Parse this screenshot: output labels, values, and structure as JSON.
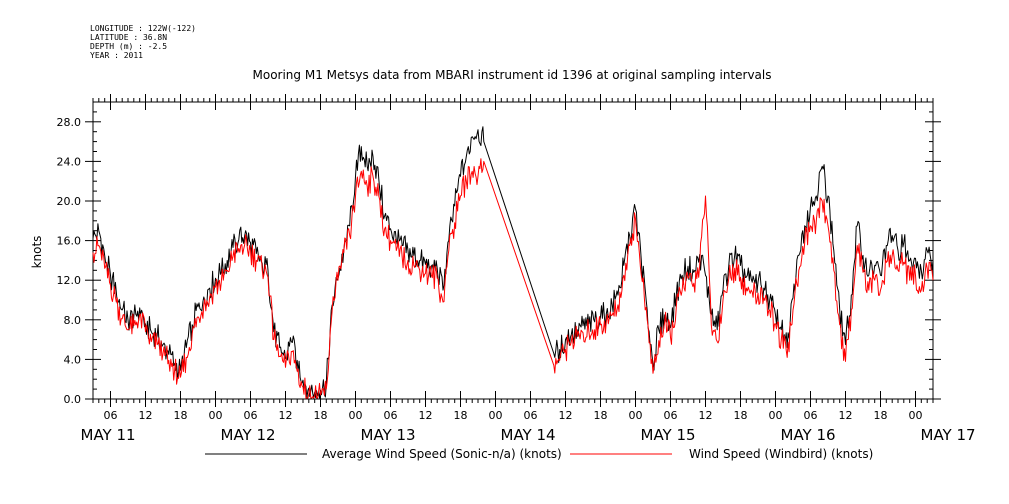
{
  "header": {
    "longitude": "LONGITUDE : 122W(-122)",
    "latitude": "LATITUDE : 36.8N",
    "depth": "DEPTH (m) : -2.5",
    "year": "YEAR : 2011"
  },
  "chart_data": {
    "type": "line",
    "title": "Mooring M1 Metsys data from MBARI instrument id 1396 at original sampling intervals",
    "xlabel": "",
    "ylabel": "knots",
    "x_unit": "hours since MAY 11 00:00",
    "xlim": [
      3,
      147
    ],
    "ylim": [
      0,
      30
    ],
    "y_ticks": [
      "0.0",
      "4.0",
      "8.0",
      "12.0",
      "16.0",
      "20.0",
      "24.0",
      "28.0"
    ],
    "x_hour_ticks": [
      {
        "x": 6,
        "label": "06"
      },
      {
        "x": 12,
        "label": "12"
      },
      {
        "x": 18,
        "label": "18"
      },
      {
        "x": 24,
        "label": "00"
      },
      {
        "x": 30,
        "label": "06"
      },
      {
        "x": 36,
        "label": "12"
      },
      {
        "x": 42,
        "label": "18"
      },
      {
        "x": 48,
        "label": "00"
      },
      {
        "x": 54,
        "label": "06"
      },
      {
        "x": 60,
        "label": "12"
      },
      {
        "x": 66,
        "label": "18"
      },
      {
        "x": 72,
        "label": "00"
      },
      {
        "x": 78,
        "label": "06"
      },
      {
        "x": 84,
        "label": "12"
      },
      {
        "x": 90,
        "label": "18"
      },
      {
        "x": 96,
        "label": "00"
      },
      {
        "x": 102,
        "label": "06"
      },
      {
        "x": 108,
        "label": "12"
      },
      {
        "x": 114,
        "label": "18"
      },
      {
        "x": 120,
        "label": "00"
      },
      {
        "x": 126,
        "label": "06"
      },
      {
        "x": 132,
        "label": "12"
      },
      {
        "x": 138,
        "label": "18"
      },
      {
        "x": 144,
        "label": "00"
      }
    ],
    "day_labels": [
      {
        "x": 6,
        "label": "MAY 11"
      },
      {
        "x": 30,
        "label": "MAY 12"
      },
      {
        "x": 54,
        "label": "MAY 13"
      },
      {
        "x": 78,
        "label": "MAY 14"
      },
      {
        "x": 102,
        "label": "MAY 15"
      },
      {
        "x": 126,
        "label": "MAY 16"
      },
      {
        "x": 150,
        "label": "MAY 17"
      }
    ],
    "grid": false,
    "legend": "bottom",
    "series": [
      {
        "name": "Average Wind Speed (Sonic-n/a) (knots)",
        "color": "#000000",
        "points": [
          [
            3,
            16.2
          ],
          [
            4,
            17.0
          ],
          [
            5,
            14.5
          ],
          [
            6,
            12.5
          ],
          [
            7,
            10.8
          ],
          [
            8,
            9.0
          ],
          [
            9,
            8.0
          ],
          [
            10,
            8.3
          ],
          [
            11,
            9.2
          ],
          [
            12,
            7.6
          ],
          [
            13,
            6.8
          ],
          [
            14,
            6.4
          ],
          [
            15,
            5.5
          ],
          [
            16,
            4.5
          ],
          [
            17,
            3.6
          ],
          [
            18,
            2.9
          ],
          [
            19,
            5.2
          ],
          [
            20,
            7.5
          ],
          [
            21,
            9.3
          ],
          [
            22,
            10.3
          ],
          [
            23,
            11.2
          ],
          [
            24,
            12.2
          ],
          [
            25,
            12.8
          ],
          [
            26,
            14.0
          ],
          [
            27,
            15.3
          ],
          [
            28,
            16.1
          ],
          [
            29,
            16.5
          ],
          [
            30,
            15.8
          ],
          [
            31,
            14.7
          ],
          [
            32,
            13.7
          ],
          [
            33,
            13.0
          ],
          [
            34,
            6.8
          ],
          [
            35,
            5.2
          ],
          [
            36,
            4.1
          ],
          [
            37,
            5.8
          ],
          [
            38,
            3.9
          ],
          [
            39,
            1.9
          ],
          [
            40,
            1.1
          ],
          [
            41,
            0.7
          ],
          [
            42,
            0.9
          ],
          [
            43,
            1.5
          ],
          [
            44,
            9.5
          ],
          [
            45,
            12.2
          ],
          [
            46,
            15.0
          ],
          [
            47,
            17.5
          ],
          [
            48,
            22.5
          ],
          [
            49,
            25.5
          ],
          [
            50,
            23.5
          ],
          [
            51,
            24.5
          ],
          [
            52,
            22.2
          ],
          [
            53,
            18.5
          ],
          [
            54,
            17.2
          ],
          [
            55,
            16.0
          ],
          [
            56,
            15.5
          ],
          [
            57,
            15.0
          ],
          [
            58,
            14.5
          ],
          [
            59,
            14.0
          ],
          [
            60,
            13.6
          ],
          [
            61,
            13.4
          ],
          [
            62,
            13.2
          ],
          [
            63,
            11.0
          ],
          [
            64,
            16.0
          ],
          [
            65,
            19.5
          ],
          [
            66,
            22.5
          ],
          [
            67,
            24.5
          ],
          [
            68,
            26.5
          ],
          [
            69,
            27.2
          ],
          [
            70,
            26.0
          ],
          [
            82,
            4.6
          ],
          [
            83,
            5.0
          ],
          [
            84,
            6.0
          ],
          [
            85,
            6.5
          ],
          [
            86,
            7.0
          ],
          [
            87,
            7.4
          ],
          [
            88,
            7.6
          ],
          [
            89,
            7.8
          ],
          [
            90,
            8.3
          ],
          [
            91,
            8.6
          ],
          [
            92,
            9.5
          ],
          [
            93,
            10.5
          ],
          [
            94,
            13.5
          ],
          [
            95,
            16.5
          ],
          [
            96,
            19.2
          ],
          [
            97,
            14.0
          ],
          [
            98,
            9.0
          ],
          [
            99,
            3.6
          ],
          [
            100,
            7.0
          ],
          [
            101,
            8.5
          ],
          [
            102,
            7.2
          ],
          [
            103,
            10.5
          ],
          [
            104,
            12.5
          ],
          [
            105,
            13.4
          ],
          [
            106,
            12.8
          ],
          [
            107,
            14.6
          ],
          [
            108,
            12.5
          ],
          [
            109,
            8.5
          ],
          [
            110,
            7.0
          ],
          [
            111,
            11.0
          ],
          [
            112,
            13.5
          ],
          [
            113,
            14.5
          ],
          [
            114,
            13.5
          ],
          [
            115,
            12.3
          ],
          [
            116,
            11.8
          ],
          [
            117,
            11.8
          ],
          [
            118,
            11.2
          ],
          [
            119,
            10.0
          ],
          [
            120,
            8.5
          ],
          [
            121,
            7.0
          ],
          [
            122,
            5.2
          ],
          [
            123,
            10.2
          ],
          [
            124,
            14.5
          ],
          [
            125,
            17.5
          ],
          [
            126,
            19.5
          ],
          [
            127,
            20.5
          ],
          [
            128,
            23.5
          ],
          [
            129,
            20.5
          ],
          [
            130,
            15.0
          ],
          [
            131,
            9.0
          ],
          [
            132,
            5.5
          ],
          [
            133,
            10.5
          ],
          [
            134,
            17.5
          ],
          [
            135,
            14.5
          ],
          [
            136,
            12.5
          ],
          [
            137,
            13.5
          ],
          [
            138,
            12.5
          ],
          [
            139,
            15.5
          ],
          [
            140,
            16.5
          ],
          [
            141,
            15.0
          ],
          [
            142,
            15.8
          ],
          [
            143,
            14.0
          ],
          [
            144,
            14.2
          ],
          [
            145,
            13.0
          ],
          [
            146,
            15.0
          ],
          [
            147,
            14.0
          ]
        ]
      },
      {
        "name": "Wind Speed (Windbird) (knots)",
        "color": "#ff0000",
        "points": [
          [
            3,
            14.8
          ],
          [
            4,
            15.5
          ],
          [
            5,
            13.2
          ],
          [
            6,
            11.5
          ],
          [
            7,
            9.8
          ],
          [
            8,
            8.1
          ],
          [
            9,
            7.0
          ],
          [
            10,
            7.4
          ],
          [
            11,
            8.5
          ],
          [
            12,
            6.8
          ],
          [
            13,
            5.8
          ],
          [
            14,
            5.5
          ],
          [
            15,
            4.6
          ],
          [
            16,
            3.9
          ],
          [
            17,
            3.0
          ],
          [
            18,
            2.2
          ],
          [
            19,
            4.2
          ],
          [
            20,
            6.6
          ],
          [
            21,
            8.3
          ],
          [
            22,
            9.5
          ],
          [
            23,
            10.3
          ],
          [
            24,
            11.3
          ],
          [
            25,
            11.8
          ],
          [
            26,
            13.0
          ],
          [
            27,
            14.4
          ],
          [
            28,
            15.2
          ],
          [
            29,
            15.6
          ],
          [
            30,
            15.0
          ],
          [
            31,
            14.0
          ],
          [
            32,
            13.1
          ],
          [
            33,
            12.3
          ],
          [
            34,
            6.0
          ],
          [
            35,
            4.3
          ],
          [
            36,
            3.2
          ],
          [
            37,
            4.8
          ],
          [
            38,
            2.8
          ],
          [
            39,
            1.2
          ],
          [
            40,
            0.5
          ],
          [
            41,
            0.3
          ],
          [
            42,
            0.4
          ],
          [
            43,
            1.0
          ],
          [
            44,
            9.0
          ],
          [
            45,
            12.0
          ],
          [
            46,
            14.8
          ],
          [
            47,
            16.5
          ],
          [
            48,
            20.5
          ],
          [
            49,
            23.0
          ],
          [
            50,
            21.5
          ],
          [
            51,
            22.5
          ],
          [
            52,
            20.5
          ],
          [
            53,
            17.2
          ],
          [
            54,
            16.0
          ],
          [
            55,
            15.0
          ],
          [
            56,
            14.3
          ],
          [
            57,
            14.0
          ],
          [
            58,
            13.5
          ],
          [
            59,
            13.0
          ],
          [
            60,
            12.7
          ],
          [
            61,
            12.5
          ],
          [
            62,
            12.2
          ],
          [
            63,
            9.8
          ],
          [
            64,
            15.0
          ],
          [
            65,
            17.8
          ],
          [
            66,
            20.5
          ],
          [
            67,
            22.0
          ],
          [
            68,
            23.0
          ],
          [
            69,
            22.5
          ],
          [
            70,
            24.0
          ],
          [
            82,
            3.4
          ],
          [
            83,
            3.9
          ],
          [
            84,
            5.0
          ],
          [
            85,
            5.8
          ],
          [
            86,
            6.3
          ],
          [
            87,
            6.7
          ],
          [
            88,
            6.9
          ],
          [
            89,
            7.0
          ],
          [
            90,
            7.5
          ],
          [
            91,
            7.8
          ],
          [
            92,
            8.5
          ],
          [
            93,
            9.5
          ],
          [
            94,
            12.5
          ],
          [
            95,
            15.5
          ],
          [
            96,
            18.2
          ],
          [
            97,
            12.5
          ],
          [
            98,
            8.0
          ],
          [
            99,
            2.6
          ],
          [
            100,
            5.9
          ],
          [
            101,
            7.8
          ],
          [
            102,
            6.2
          ],
          [
            103,
            9.3
          ],
          [
            104,
            11.0
          ],
          [
            105,
            12.2
          ],
          [
            106,
            11.7
          ],
          [
            107,
            13.5
          ],
          [
            108,
            20.5
          ],
          [
            109,
            7.5
          ],
          [
            110,
            5.8
          ],
          [
            111,
            10.0
          ],
          [
            112,
            12.2
          ],
          [
            113,
            13.2
          ],
          [
            114,
            12.3
          ],
          [
            115,
            11.2
          ],
          [
            116,
            10.8
          ],
          [
            117,
            10.7
          ],
          [
            118,
            10.2
          ],
          [
            119,
            9.0
          ],
          [
            120,
            7.6
          ],
          [
            121,
            6.0
          ],
          [
            122,
            4.2
          ],
          [
            123,
            9.0
          ],
          [
            124,
            13.0
          ],
          [
            125,
            15.8
          ],
          [
            126,
            17.5
          ],
          [
            127,
            18.0
          ],
          [
            128,
            20.0
          ],
          [
            129,
            17.5
          ],
          [
            130,
            13.0
          ],
          [
            131,
            7.5
          ],
          [
            132,
            3.8
          ],
          [
            133,
            9.0
          ],
          [
            134,
            15.5
          ],
          [
            135,
            12.8
          ],
          [
            136,
            11.0
          ],
          [
            137,
            12.0
          ],
          [
            138,
            11.0
          ],
          [
            139,
            13.8
          ],
          [
            140,
            14.5
          ],
          [
            141,
            13.0
          ],
          [
            142,
            13.8
          ],
          [
            143,
            12.0
          ],
          [
            144,
            12.5
          ],
          [
            145,
            11.0
          ],
          [
            146,
            13.2
          ],
          [
            147,
            12.0
          ]
        ]
      }
    ]
  }
}
